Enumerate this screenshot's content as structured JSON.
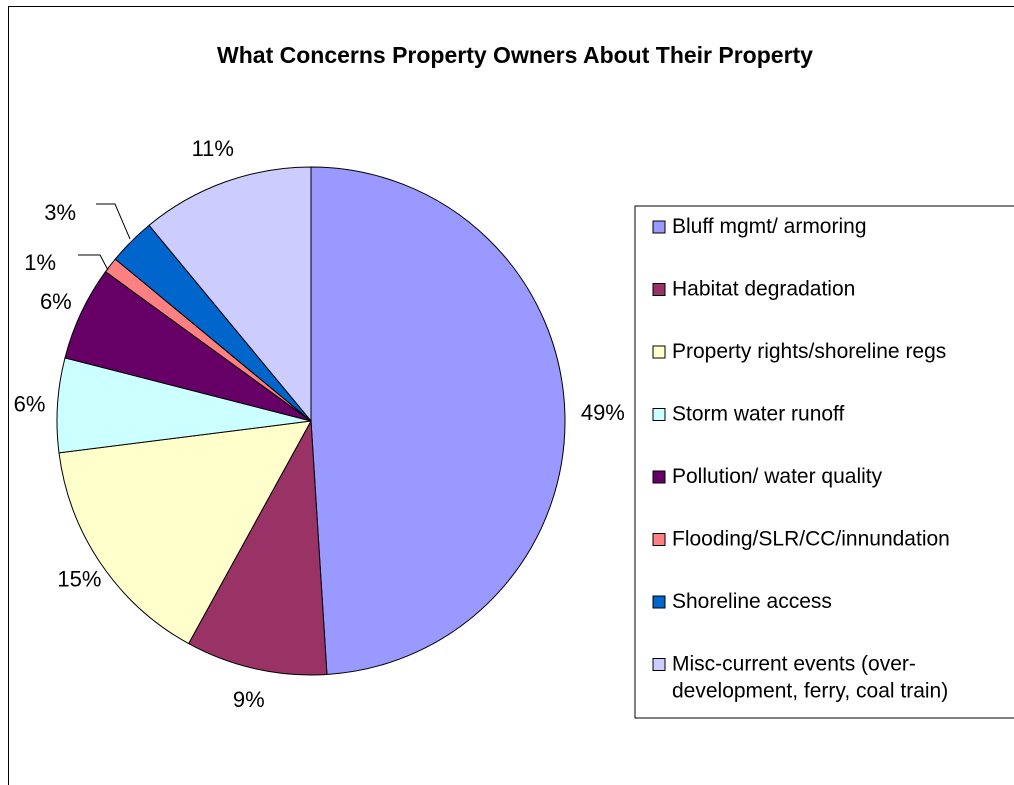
{
  "chart_data": {
    "type": "pie",
    "title": "What Concerns Property Owners About Their Property",
    "legend_position": "right",
    "slices": [
      {
        "label": "Bluff mgmt/ armoring",
        "value": 49,
        "value_label": "49%",
        "color": "#9999ff"
      },
      {
        "label": "Habitat degradation",
        "value": 9,
        "value_label": "9%",
        "color": "#993366"
      },
      {
        "label": "Property rights/shoreline regs",
        "value": 15,
        "value_label": "15%",
        "color": "#ffffcc"
      },
      {
        "label": "Storm water runoff",
        "value": 6,
        "value_label": "6%",
        "color": "#ccffff"
      },
      {
        "label": "Pollution/ water quality",
        "value": 6,
        "value_label": "6%",
        "color": "#660066"
      },
      {
        "label": "Flooding/SLR/CC/innundation",
        "value": 1,
        "value_label": "1%",
        "color": "#ff8080"
      },
      {
        "label": "Shoreline access",
        "value": 3,
        "value_label": "3%",
        "color": "#0066cc"
      },
      {
        "label": "Misc-current events (over-development, ferry, coal train)",
        "label_lines": [
          "Misc-current events (over-",
          "development, ferry, coal train)"
        ],
        "value": 11,
        "value_label": "11%",
        "color": "#ccccff"
      }
    ]
  }
}
